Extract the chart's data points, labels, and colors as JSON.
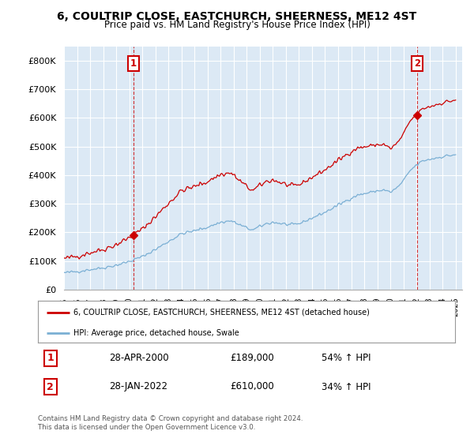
{
  "title": "6, COULTRIP CLOSE, EASTCHURCH, SHEERNESS, ME12 4ST",
  "subtitle": "Price paid vs. HM Land Registry's House Price Index (HPI)",
  "hpi_label": "HPI: Average price, detached house, Swale",
  "property_label": "6, COULTRIP CLOSE, EASTCHURCH, SHEERNESS, ME12 4ST (detached house)",
  "xlim_start": 1995.0,
  "xlim_end": 2025.5,
  "ylim_min": 0,
  "ylim_max": 850000,
  "transaction1_date": "28-APR-2000",
  "transaction1_price": 189000,
  "transaction1_hpi": "54% ↑ HPI",
  "transaction1_x": 2000.32,
  "transaction2_date": "28-JAN-2022",
  "transaction2_price": 610000,
  "transaction2_hpi": "34% ↑ HPI",
  "transaction2_x": 2022.07,
  "background_color": "#ffffff",
  "plot_bg_color": "#dce9f5",
  "grid_color": "#ffffff",
  "hpi_line_color": "#7aafd4",
  "price_line_color": "#cc0000",
  "marker_color": "#cc0000",
  "footnote": "Contains HM Land Registry data © Crown copyright and database right 2024.\nThis data is licensed under the Open Government Licence v3.0.",
  "ytick_labels": [
    "£0",
    "£100K",
    "£200K",
    "£300K",
    "£400K",
    "£500K",
    "£600K",
    "£700K",
    "£800K"
  ],
  "ytick_values": [
    0,
    100000,
    200000,
    300000,
    400000,
    500000,
    600000,
    700000,
    800000
  ],
  "xtick_years": [
    1995,
    1996,
    1997,
    1998,
    1999,
    2000,
    2001,
    2002,
    2003,
    2004,
    2005,
    2006,
    2007,
    2008,
    2009,
    2010,
    2011,
    2012,
    2013,
    2014,
    2015,
    2016,
    2017,
    2018,
    2019,
    2020,
    2021,
    2022,
    2023,
    2024,
    2025
  ]
}
